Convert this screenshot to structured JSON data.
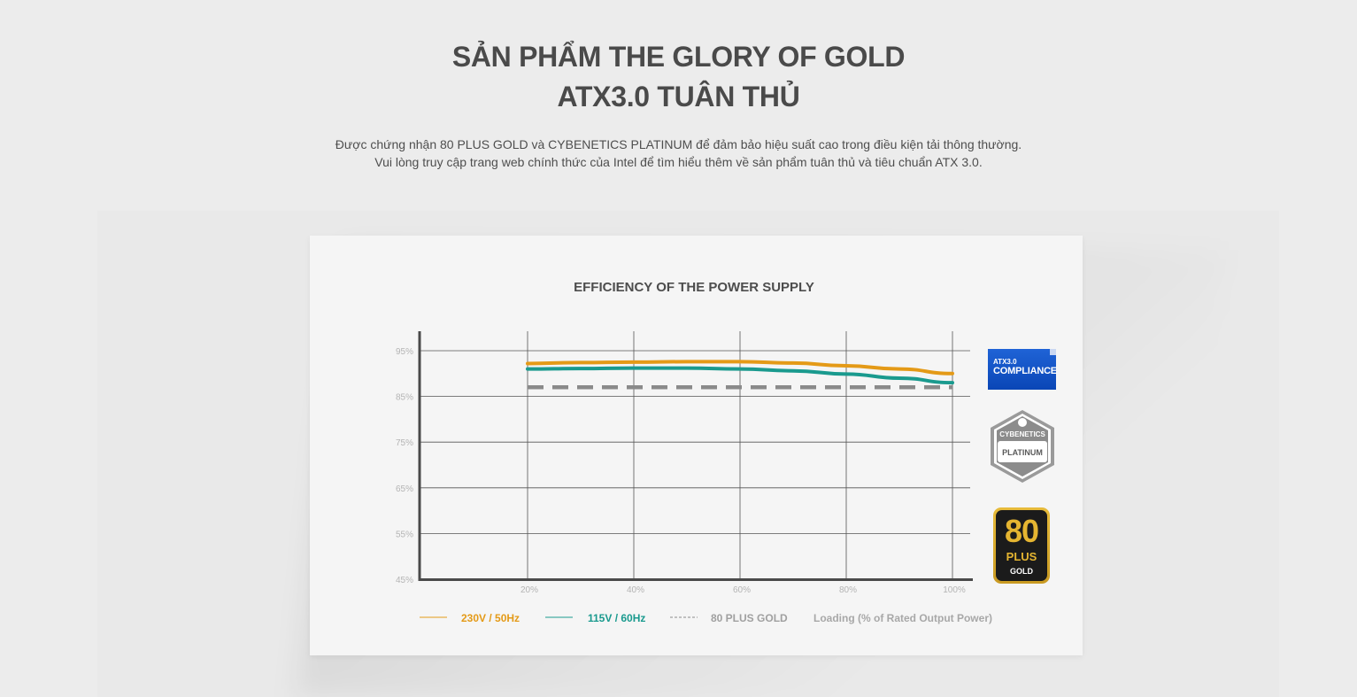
{
  "header": {
    "title_line1": "SẢN PHẨM THE GLORY OF GOLD",
    "title_line2": "ATX3.0 TUÂN THỦ",
    "desc_line1": "Được chứng nhận 80 PLUS GOLD và CYBENETICS PLATINUM để đảm bảo hiệu suất cao trong điều kiện tải thông thường.",
    "desc_line2": "Vui lòng truy cập trang web chính thức của Intel để tìm hiểu thêm về sản phẩm tuân thủ và tiêu chuẩn ATX 3.0."
  },
  "badges": {
    "atx_small": "ATX3.0",
    "atx_big": "COMPLIANCE",
    "cyb_brand": "CYBENETICS",
    "cyb_level": "PLATINUM",
    "plus_num": "80",
    "plus_word": "PLUS",
    "plus_tier": "GOLD"
  },
  "chart_data": {
    "type": "line",
    "title": "EFFICIENCY OF THE POWER SUPPLY",
    "xlabel": "Loading (% of Rated Output Power)",
    "ylabel": "",
    "x": [
      20,
      40,
      60,
      80,
      100
    ],
    "x_tick_labels": [
      "20%",
      "40%",
      "60%",
      "80%",
      "100%"
    ],
    "y_tick_values": [
      45,
      55,
      65,
      75,
      85,
      95
    ],
    "y_tick_labels": [
      "45%",
      "55%",
      "65%",
      "75%",
      "85%",
      "95%"
    ],
    "xlim": [
      0,
      104
    ],
    "ylim": [
      45,
      98
    ],
    "grid": true,
    "legend_position": "bottom",
    "series": [
      {
        "name": "230V / 50Hz",
        "color": "#e49a17",
        "style": "solid",
        "x": [
          20,
          30,
          40,
          50,
          60,
          70,
          80,
          90,
          100
        ],
        "values": [
          92.2,
          92.4,
          92.5,
          92.6,
          92.6,
          92.3,
          91.7,
          91.0,
          90.0
        ]
      },
      {
        "name": "115V / 60Hz",
        "color": "#1a9a8e",
        "style": "solid",
        "x": [
          20,
          30,
          40,
          50,
          60,
          70,
          80,
          90,
          100
        ],
        "values": [
          91.0,
          91.1,
          91.2,
          91.2,
          91.0,
          90.6,
          89.9,
          89.0,
          88.0
        ]
      },
      {
        "name": "80 PLUS GOLD",
        "color": "#8a8a8a",
        "style": "dashed",
        "x": [
          20,
          100
        ],
        "values": [
          87.0,
          87.0
        ]
      }
    ]
  }
}
